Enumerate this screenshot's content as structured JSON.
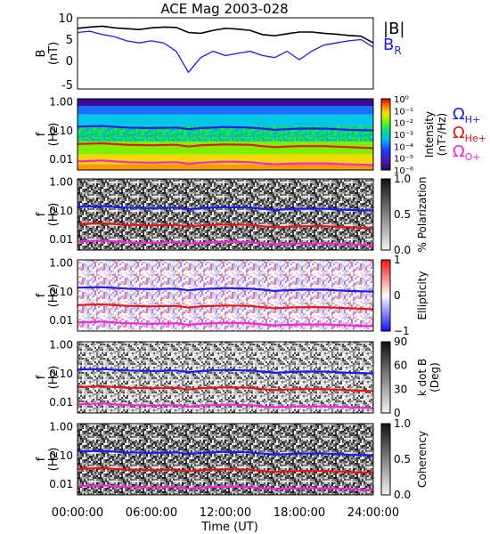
{
  "title": "ACE Mag 2003-028",
  "xaxis": {
    "label": "Time (UT)",
    "ticks": [
      "00:00:00",
      "06:00:00",
      "12:00:00",
      "18:00:00",
      "24:00:00"
    ]
  },
  "legend_top": {
    "b_total": "|B|",
    "b_r_main": "B",
    "b_r_sub": "R",
    "b_total_color": "#000000",
    "b_r_color": "#1a1aff"
  },
  "legend_gyro": [
    {
      "main": "Ω",
      "sub": "H+",
      "color": "#1a1aff"
    },
    {
      "main": "Ω",
      "sub": "He+",
      "color": "#ee1111"
    },
    {
      "main": "Ω",
      "sub": "O+",
      "color": "#ff22dd"
    }
  ],
  "panels": [
    {
      "id": "bfield",
      "ylabel_main": "B",
      "ylabel_sub": "(nT)",
      "yticks": [
        "10",
        "5",
        "0",
        "-5"
      ]
    },
    {
      "id": "intensity",
      "ylabel_main": "f",
      "ylabel_sub": "(Hz)",
      "yticks": [
        "1.00",
        "0.10",
        "0.01"
      ],
      "cbar_title": "Intensity",
      "cbar_unit": "(nT²/Hz)",
      "cbar_ticks": [
        "10⁰",
        "10⁻¹",
        "10⁻²",
        "10⁻³",
        "10⁻⁴",
        "10⁻⁵",
        "10⁻⁶"
      ]
    },
    {
      "id": "polarization",
      "ylabel_main": "f",
      "ylabel_sub": "(Hz)",
      "yticks": [
        "1.00",
        "0.10",
        "0.01"
      ],
      "cbar_title": "% Polarization",
      "cbar_unit": "",
      "cbar_ticks": [
        "1.0",
        "0.5",
        "0.0"
      ]
    },
    {
      "id": "ellipticity",
      "ylabel_main": "f",
      "ylabel_sub": "(Hz)",
      "yticks": [
        "1.00",
        "0.10",
        "0.01"
      ],
      "cbar_title": "Ellipticity",
      "cbar_unit": "",
      "cbar_ticks": [
        "1",
        "0",
        "−1"
      ]
    },
    {
      "id": "kdotb",
      "ylabel_main": "f",
      "ylabel_sub": "(Hz)",
      "yticks": [
        "1.00",
        "0.10",
        "0.01"
      ],
      "cbar_title": "k dot B",
      "cbar_unit": "(Deg)",
      "cbar_ticks": [
        "90",
        "60",
        "30",
        "0"
      ]
    },
    {
      "id": "coherency",
      "ylabel_main": "f",
      "ylabel_sub": "(Hz)",
      "yticks": [
        "1.00",
        "0.10",
        "0.01"
      ],
      "cbar_title": "Coherency",
      "cbar_unit": "",
      "cbar_ticks": [
        "1.0",
        "0.5",
        "0.0"
      ]
    }
  ],
  "chart_data": {
    "type": "line",
    "title": "ACE Mag 2003-028",
    "xlabel": "Time (UT)",
    "xlim_hours": [
      0,
      24
    ],
    "bfield": {
      "ylim": [
        -6,
        11
      ],
      "x_hours": [
        0,
        1,
        2,
        3,
        4,
        5,
        6,
        7,
        8,
        9,
        10,
        11,
        12,
        13,
        14,
        15,
        16,
        17,
        18,
        19,
        20,
        21,
        22,
        23,
        24
      ],
      "series": [
        {
          "name": "|B|",
          "values": [
            8.5,
            8.8,
            9.0,
            8.6,
            8.4,
            8.2,
            8.6,
            8.8,
            8.7,
            7.5,
            7.3,
            8.0,
            8.5,
            8.3,
            8.0,
            7.0,
            6.7,
            7.2,
            7.6,
            7.6,
            7.3,
            7.1,
            6.8,
            6.6,
            5.0
          ]
        },
        {
          "name": "B_R",
          "values": [
            7.5,
            7.8,
            7.0,
            6.5,
            5.5,
            5.0,
            5.5,
            5.0,
            3.0,
            -2.0,
            1.5,
            3.0,
            2.0,
            2.5,
            3.0,
            2.0,
            1.5,
            3.0,
            1.0,
            3.0,
            4.5,
            5.0,
            5.5,
            5.8,
            4.0
          ]
        }
      ]
    },
    "gyrofrequency_hz": {
      "x_hours": [
        0,
        2,
        4,
        6,
        8,
        9,
        10,
        12,
        14,
        15,
        16,
        17,
        18,
        20,
        22,
        24
      ],
      "series": [
        {
          "name": "ΩH+",
          "values": [
            0.13,
            0.135,
            0.12,
            0.115,
            0.12,
            0.105,
            0.115,
            0.125,
            0.12,
            0.11,
            0.1,
            0.105,
            0.11,
            0.11,
            0.1,
            0.095
          ]
        },
        {
          "name": "ΩHe+",
          "values": [
            0.032,
            0.034,
            0.03,
            0.029,
            0.03,
            0.026,
            0.029,
            0.031,
            0.03,
            0.027,
            0.025,
            0.026,
            0.027,
            0.027,
            0.025,
            0.023
          ]
        },
        {
          "name": "ΩO+",
          "values": [
            0.008,
            0.0085,
            0.0075,
            0.0072,
            0.0075,
            0.0066,
            0.0072,
            0.0078,
            0.0075,
            0.0068,
            0.0063,
            0.0066,
            0.0068,
            0.0068,
            0.0063,
            0.0059
          ]
        }
      ]
    },
    "colorbars": {
      "intensity": {
        "scale": "log",
        "range": [
          "1e-6",
          "1e0"
        ],
        "unit": "nT²/Hz"
      },
      "polarization": {
        "range": [
          0,
          1
        ]
      },
      "ellipticity": {
        "range": [
          -1,
          1
        ]
      },
      "kdotb": {
        "range": [
          0,
          90
        ],
        "unit": "Deg"
      },
      "coherency": {
        "range": [
          0,
          1
        ]
      }
    }
  }
}
